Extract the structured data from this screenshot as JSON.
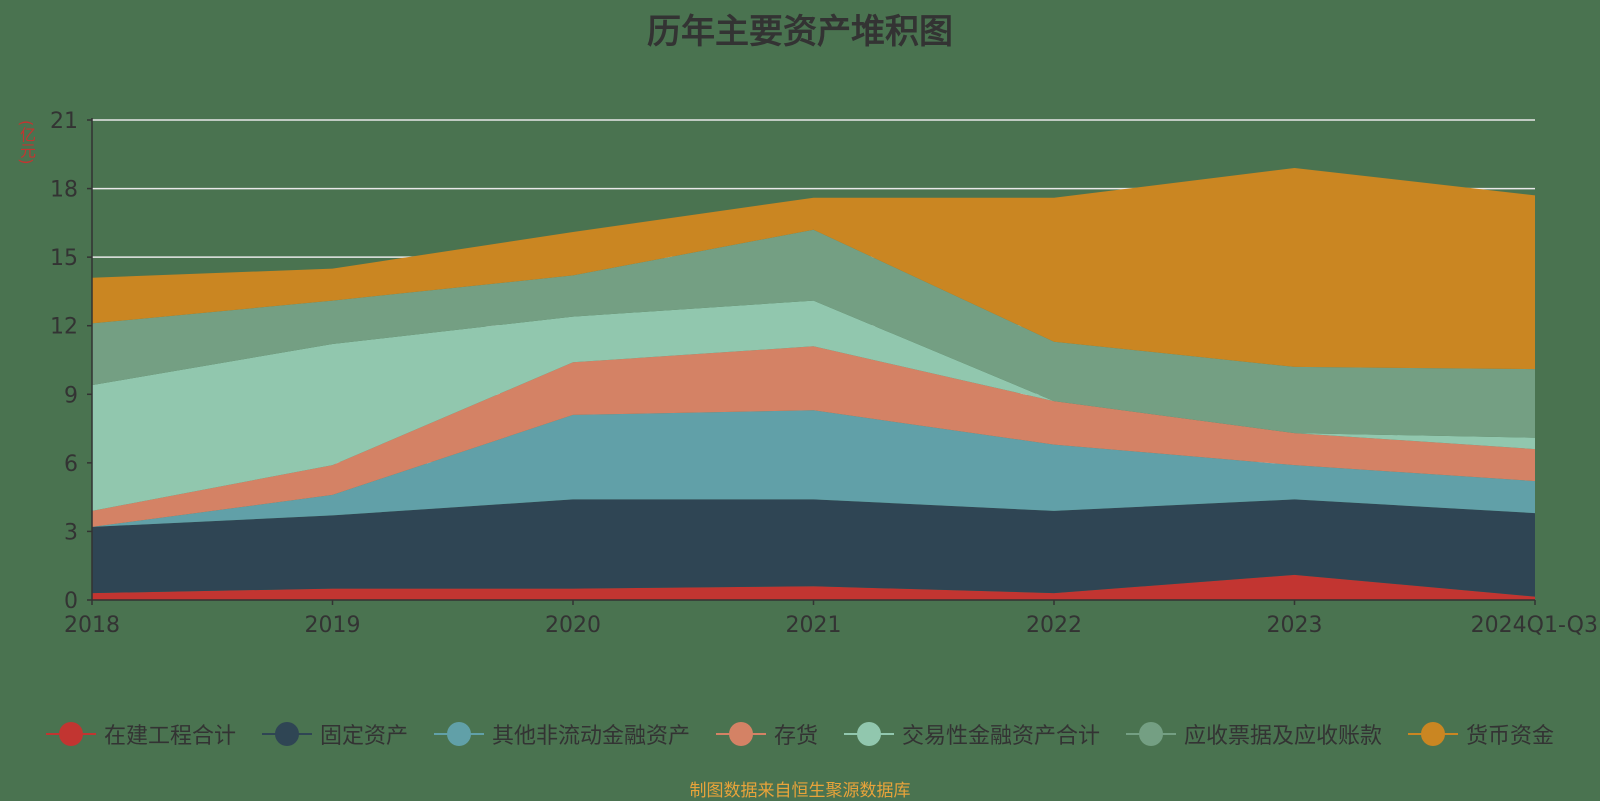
{
  "chart_data": {
    "type": "area",
    "title": "历年主要资产堆积图",
    "unit_label": "(亿元)",
    "source": "制图数据来自恒生聚源数据库",
    "categories": [
      "2018",
      "2019",
      "2020",
      "2021",
      "2022",
      "2023",
      "2024Q1-Q3"
    ],
    "ylim": [
      0,
      21
    ],
    "yticks": [
      0,
      3,
      6,
      9,
      12,
      15,
      18,
      21
    ],
    "grid": true,
    "stacked": true,
    "legend_position": "bottom",
    "series": [
      {
        "name": "在建工程合计",
        "color": "#c23531",
        "values": [
          0.3,
          0.5,
          0.5,
          0.6,
          0.3,
          1.1,
          0.15
        ]
      },
      {
        "name": "固定资产",
        "color": "#2f4554",
        "values": [
          2.9,
          3.2,
          3.9,
          3.8,
          3.6,
          3.3,
          3.65
        ]
      },
      {
        "name": "其他非流动金融资产",
        "color": "#61a0a8",
        "values": [
          0.0,
          0.9,
          3.7,
          3.9,
          2.9,
          1.5,
          1.4
        ]
      },
      {
        "name": "存货",
        "color": "#d48265",
        "values": [
          0.7,
          1.3,
          2.3,
          2.8,
          1.9,
          1.4,
          1.4
        ]
      },
      {
        "name": "交易性金融资产合计",
        "color": "#91c7ae",
        "values": [
          5.5,
          5.3,
          2.0,
          2.0,
          0.0,
          0.0,
          0.5
        ]
      },
      {
        "name": "应收票据及应收账款",
        "color": "#749f83",
        "values": [
          2.7,
          1.9,
          1.8,
          3.1,
          2.6,
          2.9,
          3.0
        ]
      },
      {
        "name": "货币资金",
        "color": "#ca8622",
        "values": [
          2.0,
          1.4,
          1.9,
          1.4,
          6.3,
          8.7,
          7.6
        ]
      }
    ]
  }
}
